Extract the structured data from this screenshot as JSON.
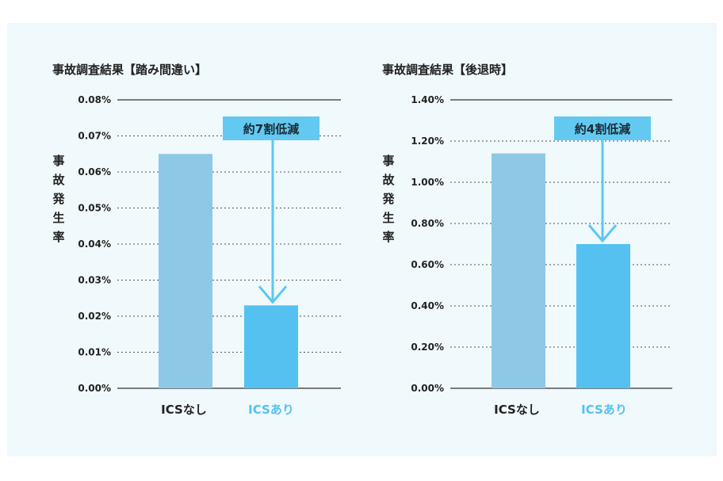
{
  "colors": {
    "background": "#f0f9fc",
    "bar_without": "#8ec8e7",
    "bar_with": "#55c1f0",
    "arrow": "#5cc8f2",
    "badge": "#63c9f1",
    "label_without": "#222222",
    "label_with": "#55c1f0"
  },
  "chart_data": [
    {
      "type": "bar",
      "title": "事故調査結果【踏み間違い】",
      "ylabel": "事故発生率",
      "categories": [
        "ICSなし",
        "ICSあり"
      ],
      "values": [
        0.065,
        0.023
      ],
      "ylim": [
        0,
        0.08
      ],
      "yticks": [
        0.0,
        0.01,
        0.02,
        0.03,
        0.04,
        0.05,
        0.06,
        0.07,
        0.08
      ],
      "ytick_labels": [
        "0.00%",
        "0.01%",
        "0.02%",
        "0.03%",
        "0.04%",
        "0.05%",
        "0.06%",
        "0.07%",
        "0.08%"
      ],
      "annotation": "約7割低減",
      "grid": true
    },
    {
      "type": "bar",
      "title": "事故調査結果【後退時】",
      "ylabel": "事故発生率",
      "categories": [
        "ICSなし",
        "ICSあり"
      ],
      "values": [
        1.14,
        0.7
      ],
      "ylim": [
        0,
        1.4
      ],
      "yticks": [
        0.0,
        0.2,
        0.4,
        0.6,
        0.8,
        1.0,
        1.2,
        1.4
      ],
      "ytick_labels": [
        "0.00%",
        "0.20%",
        "0.40%",
        "0.60%",
        "0.80%",
        "1.00%",
        "1.20%",
        "1.40%"
      ],
      "annotation": "約4割低減",
      "grid": true
    }
  ]
}
